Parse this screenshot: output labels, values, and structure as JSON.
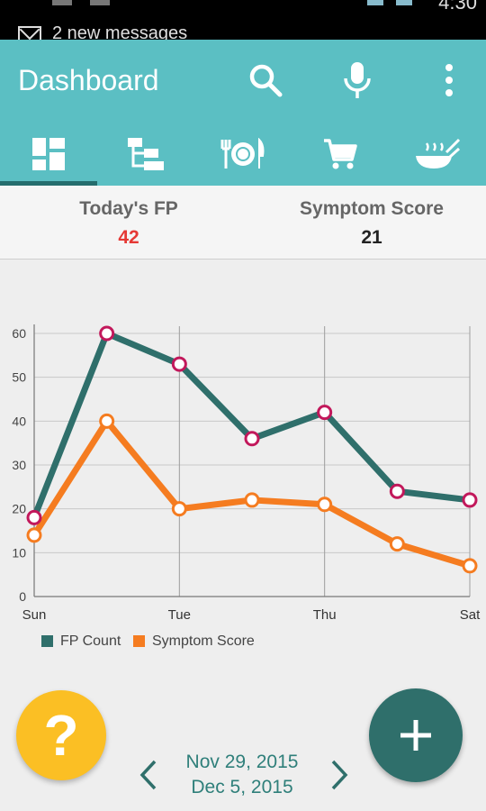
{
  "status_bar": {
    "notification": "2 new messages",
    "time": "4:30"
  },
  "app_bar": {
    "title": "Dashboard",
    "actions": [
      "search-icon",
      "microphone-icon",
      "overflow-menu-icon"
    ]
  },
  "tabs": [
    {
      "icon": "dashboard-icon",
      "active": true
    },
    {
      "icon": "hierarchy-icon",
      "active": false
    },
    {
      "icon": "fork-plate-knife-icon",
      "active": false
    },
    {
      "icon": "shopping-cart-icon",
      "active": false
    },
    {
      "icon": "cooking-pan-icon",
      "active": false
    }
  ],
  "summary": {
    "fp_label": "Today's FP",
    "fp_value": "42",
    "symptom_label": "Symptom Score",
    "symptom_value": "21"
  },
  "colors": {
    "primary": "#5bbfc3",
    "tab_indicator": "#256d6d",
    "fp_value": "#e53935",
    "fp_series": "#2f6f6b",
    "symptom_series": "#f57c20",
    "point_outline": "#c2185b",
    "help_fab": "#fbbf24",
    "add_fab": "#2f6f6b",
    "date_text": "#2f7f7a"
  },
  "chart_data": {
    "type": "line",
    "x": [
      "Sun",
      "Mon",
      "Tue",
      "Wed",
      "Thu",
      "Fri",
      "Sat"
    ],
    "x_tick_labels": [
      "Sun",
      "Tue",
      "Thu",
      "Sat"
    ],
    "series": [
      {
        "name": "FP Count",
        "values": [
          18,
          60,
          53,
          36,
          42,
          24,
          22
        ]
      },
      {
        "name": "Symptom Score",
        "values": [
          14,
          40,
          20,
          22,
          21,
          12,
          7
        ]
      }
    ],
    "ylim": [
      0,
      60
    ],
    "y_ticks": [
      0,
      10,
      20,
      30,
      40,
      50,
      60
    ],
    "grid": true,
    "legend": "bottom-left"
  },
  "date_range": {
    "start": "Nov 29, 2015",
    "end": "Dec 5, 2015"
  }
}
